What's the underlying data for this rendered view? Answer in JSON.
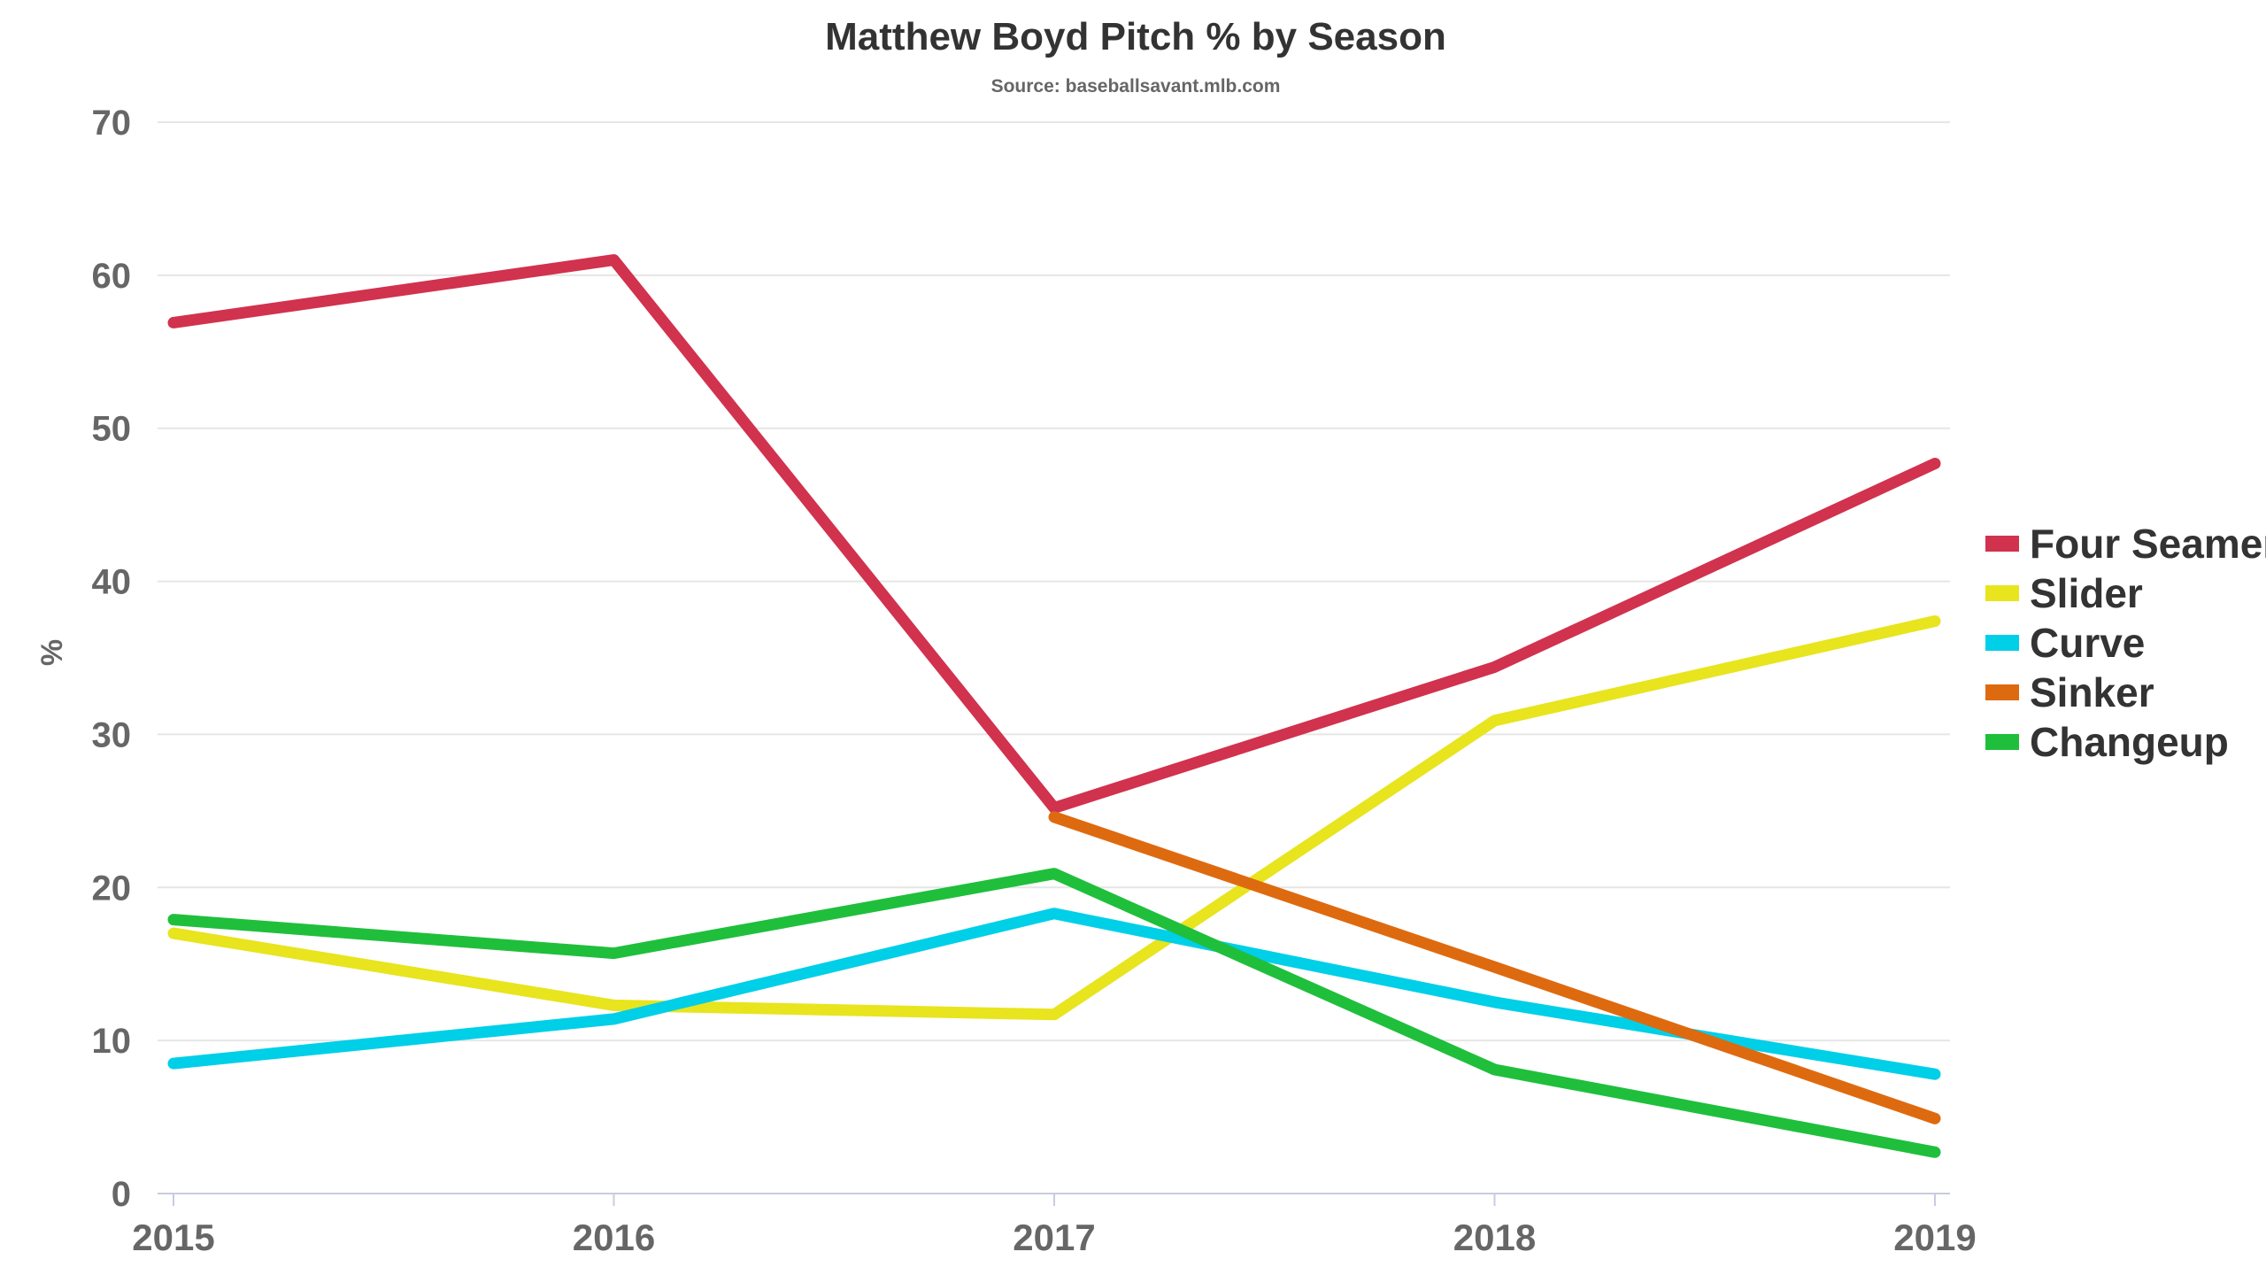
{
  "chart_data": {
    "type": "line",
    "title": "Matthew Boyd Pitch % by Season",
    "subtitle": "Source: baseballsavant.mlb.com",
    "xlabel": "",
    "ylabel": "%",
    "x": [
      "2015",
      "2016",
      "2017",
      "2018",
      "2019"
    ],
    "ylim": [
      0,
      70
    ],
    "yticks": [
      0,
      10,
      20,
      30,
      40,
      50,
      60,
      70
    ],
    "grid": true,
    "legend_position": "right",
    "series": [
      {
        "name": "Four Seamer",
        "color": "#d1324e",
        "values": [
          56.9,
          61.0,
          25.2,
          34.4,
          47.7
        ]
      },
      {
        "name": "Slider",
        "color": "#e8e41e",
        "values": [
          17.0,
          12.3,
          11.7,
          30.9,
          37.4
        ]
      },
      {
        "name": "Curve",
        "color": "#00cfe8",
        "values": [
          8.5,
          11.4,
          18.3,
          12.5,
          7.8
        ]
      },
      {
        "name": "Sinker",
        "color": "#de6a10",
        "values": [
          null,
          null,
          24.6,
          14.8,
          4.9
        ]
      },
      {
        "name": "Changeup",
        "color": "#1fbf3c",
        "values": [
          17.9,
          15.7,
          20.9,
          8.1,
          2.7
        ]
      }
    ]
  }
}
